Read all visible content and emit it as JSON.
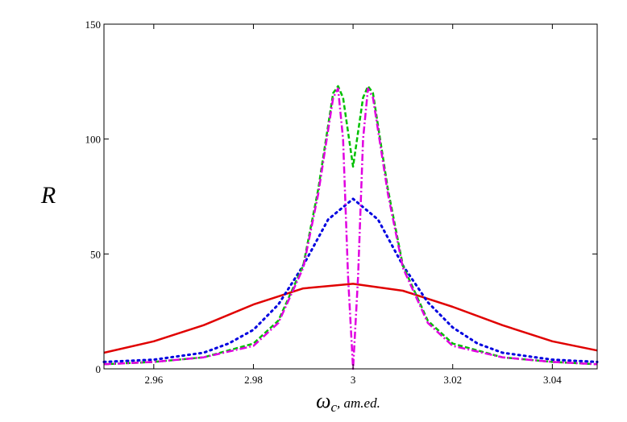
{
  "chart_data": {
    "type": "line",
    "title": "",
    "ylabel": "R",
    "xlabel": {
      "symbol": "ω",
      "subscript": "c",
      "unit": ", am.ed."
    },
    "xlim": [
      2.95,
      3.049
    ],
    "ylim": [
      0,
      150
    ],
    "xticks": [
      2.96,
      2.98,
      3.0,
      3.02,
      3.04
    ],
    "xtick_labels": [
      "2.96",
      "2.98",
      "3",
      "3.02",
      "3.04"
    ],
    "yticks": [
      0,
      50,
      100,
      150
    ],
    "ytick_labels": [
      "0",
      "50",
      "100",
      "150"
    ],
    "grid": false,
    "legend": "none",
    "series": [
      {
        "color": "#e00000",
        "style": "solid",
        "x": [
          2.95,
          2.96,
          2.97,
          2.98,
          2.99,
          3.0,
          3.01,
          3.02,
          3.03,
          3.04,
          3.049
        ],
        "y": [
          7,
          12,
          19,
          28,
          35,
          37,
          34,
          27,
          19,
          12,
          8
        ]
      },
      {
        "color": "#0000e0",
        "style": "dotted",
        "x": [
          2.95,
          2.96,
          2.97,
          2.975,
          2.98,
          2.985,
          2.99,
          2.995,
          3.0,
          3.005,
          3.01,
          3.015,
          3.02,
          3.025,
          3.03,
          3.04,
          3.049
        ],
        "y": [
          3,
          4,
          7,
          11,
          17,
          28,
          45,
          65,
          74,
          65,
          45,
          29,
          18,
          11,
          7,
          4,
          3
        ]
      },
      {
        "color": "#00c000",
        "style": "dashed",
        "x": [
          2.95,
          2.96,
          2.97,
          2.98,
          2.985,
          2.99,
          2.993,
          2.996,
          2.997,
          2.998,
          3.0,
          3.002,
          3.003,
          3.004,
          3.007,
          3.01,
          3.015,
          3.02,
          3.03,
          3.04,
          3.049
        ],
        "y": [
          2,
          3,
          5,
          11,
          21,
          45,
          78,
          120,
          123,
          118,
          88,
          118,
          123,
          120,
          78,
          45,
          21,
          11,
          5,
          3,
          2
        ]
      },
      {
        "color": "#e000e0",
        "style": "dash-dot",
        "x": [
          2.95,
          2.96,
          2.97,
          2.98,
          2.985,
          2.99,
          2.993,
          2.996,
          2.997,
          2.998,
          2.999,
          3.0,
          3.001,
          3.002,
          3.003,
          3.004,
          3.007,
          3.01,
          3.015,
          3.02,
          3.03,
          3.04,
          3.049
        ],
        "y": [
          2,
          3,
          5,
          10,
          20,
          44,
          76,
          118,
          122,
          100,
          40,
          0,
          40,
          100,
          122,
          118,
          76,
          44,
          20,
          10,
          5,
          3,
          2
        ]
      }
    ]
  }
}
